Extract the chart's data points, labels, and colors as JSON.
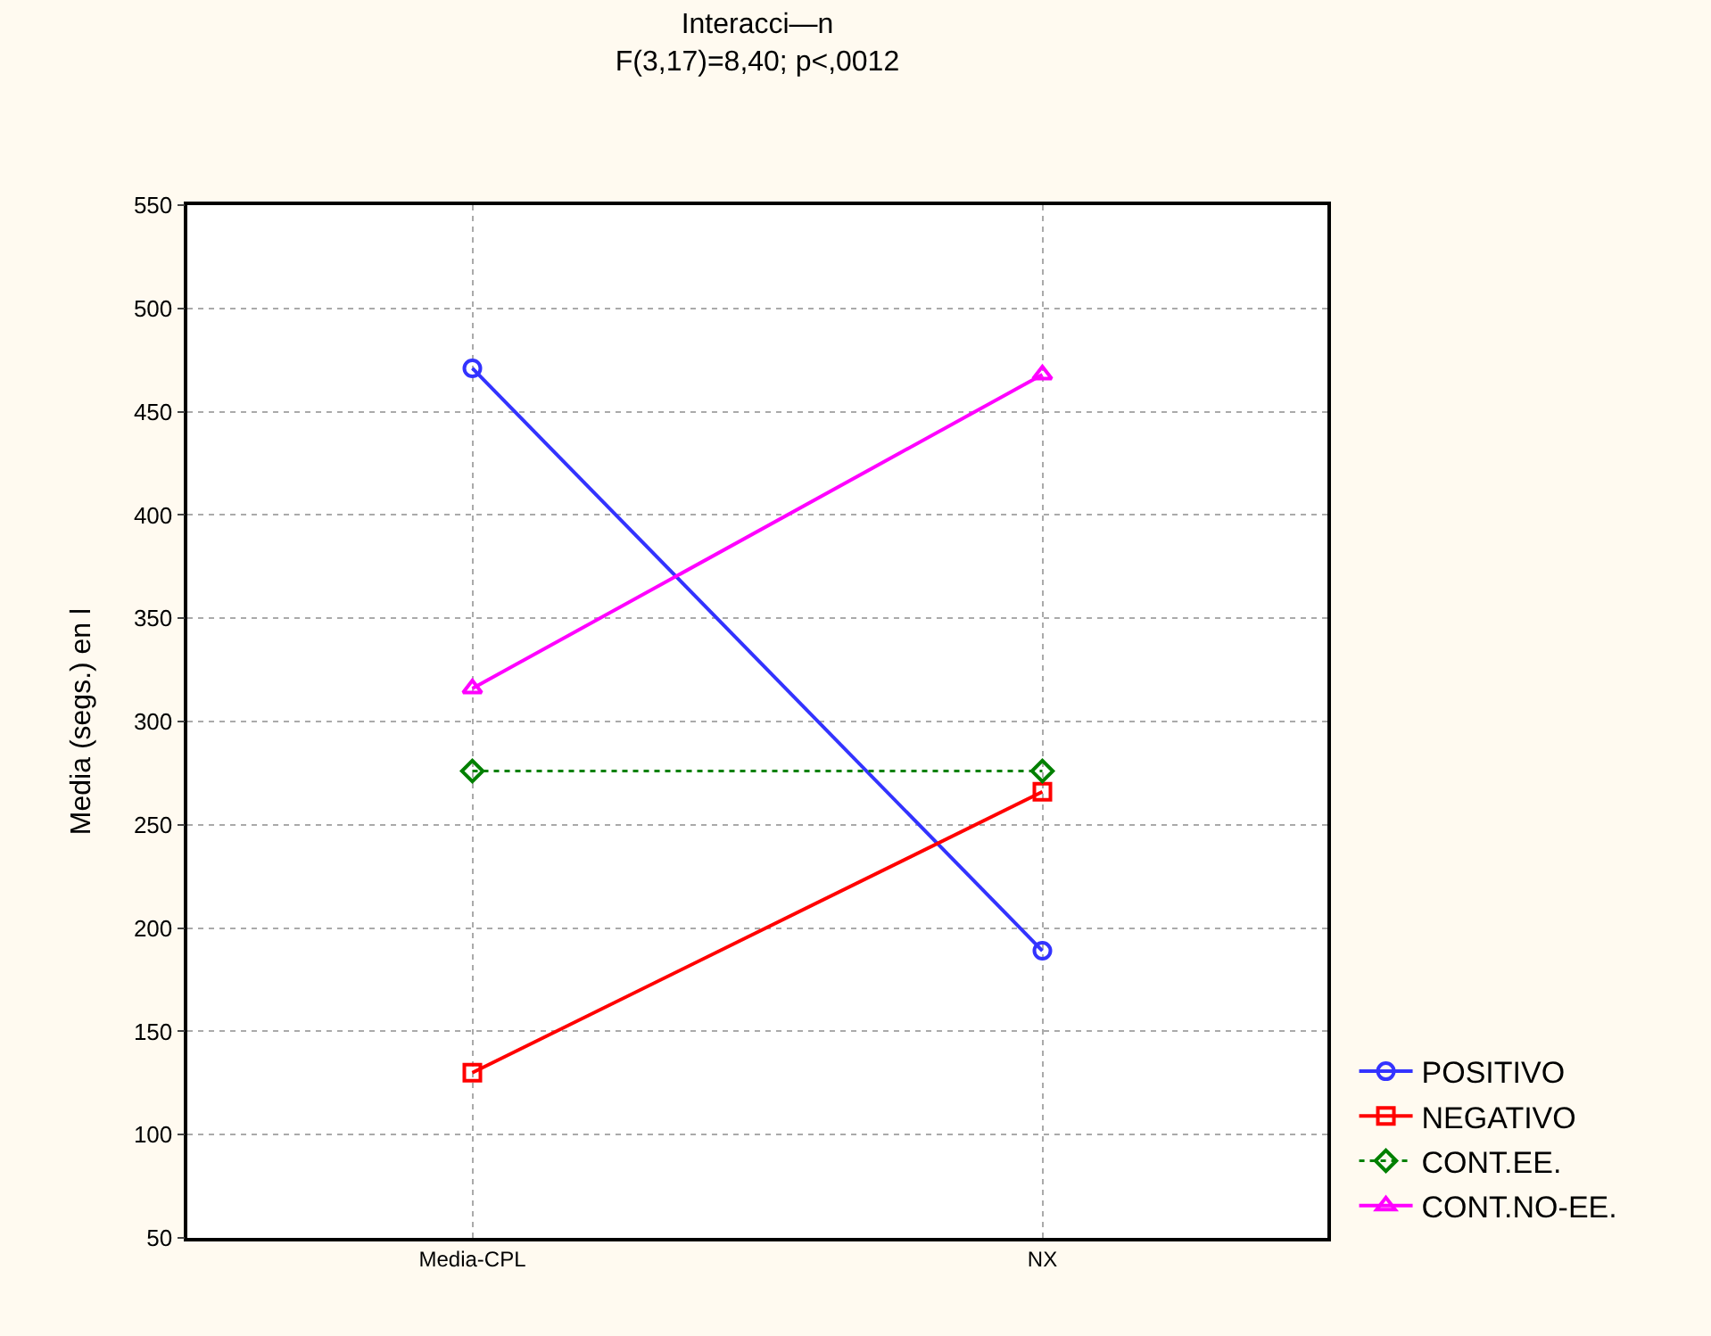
{
  "chart_data": {
    "type": "line",
    "title": "Interacci—n",
    "subtitle": "F(3,17)=8,40; p<,0012",
    "ylabel": "Media (segs.) en l",
    "categories": [
      "Media-CPL",
      "NX"
    ],
    "series": [
      {
        "name": "POSITIVO",
        "color": "#3333ff",
        "values": [
          471,
          189
        ],
        "marker": "circle",
        "line_style": "solid"
      },
      {
        "name": "NEGATIVO",
        "color": "#ff0000",
        "values": [
          130,
          266
        ],
        "marker": "square",
        "line_style": "solid"
      },
      {
        "name": "CONT.EE.",
        "color": "#008000",
        "values": [
          276,
          276
        ],
        "marker": "diamond",
        "line_style": "dotted"
      },
      {
        "name": "CONT.NO-EE.",
        "color": "#ff00ff",
        "values": [
          316,
          468
        ],
        "marker": "triangle",
        "line_style": "solid"
      }
    ],
    "ylim": [
      50,
      550
    ],
    "yticks": [
      50,
      100,
      150,
      200,
      250,
      300,
      350,
      400,
      450,
      500,
      550
    ],
    "grid": true,
    "legend": "bottom right"
  }
}
